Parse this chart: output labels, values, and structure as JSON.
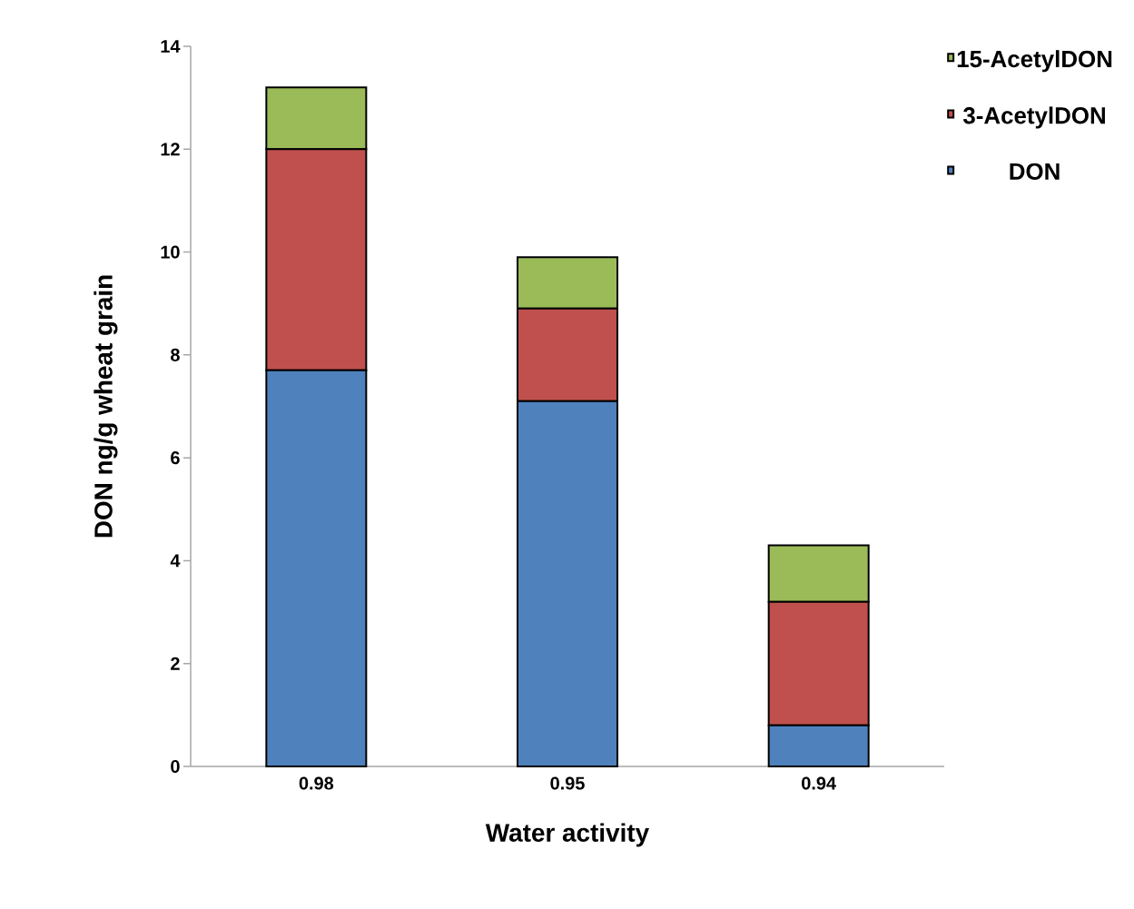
{
  "chart_data": {
    "type": "bar",
    "stacked": true,
    "xlabel": "Water activity",
    "ylabel": "DON ng/g wheat grain",
    "categories": [
      "0.98",
      "0.95",
      "0.94"
    ],
    "series": [
      {
        "name": "DON",
        "color": "#4f81bd",
        "values": [
          7.7,
          7.1,
          0.8
        ]
      },
      {
        "name": "3-AcetylDON",
        "color": "#c0504d",
        "values": [
          4.3,
          1.8,
          2.4
        ]
      },
      {
        "name": "15-AcetylDON",
        "color": "#9bbb59",
        "values": [
          1.2,
          1.0,
          1.1
        ]
      }
    ],
    "ylim": [
      0,
      14
    ],
    "yticks": [
      0,
      2,
      4,
      6,
      8,
      10,
      12,
      14
    ],
    "grid": false,
    "legend": "top right"
  }
}
